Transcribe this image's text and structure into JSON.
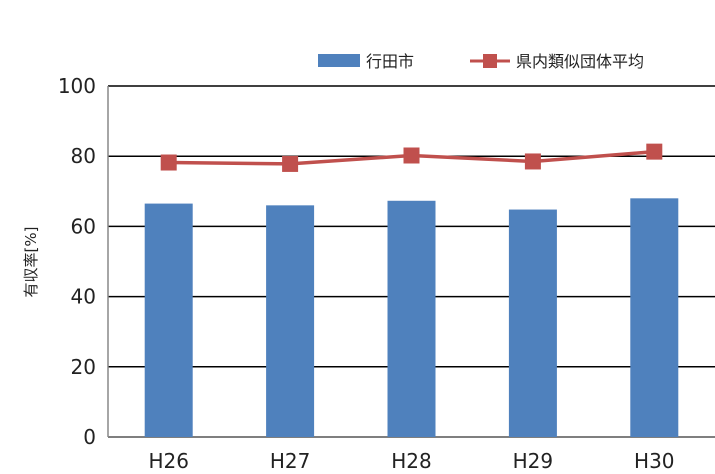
{
  "chart_data": {
    "type": "bar",
    "categories": [
      "H26",
      "H27",
      "H28",
      "H29",
      "H30"
    ],
    "series": [
      {
        "name": "行田市",
        "kind": "bar",
        "color": "#4f81bd",
        "values": [
          66.5,
          66.0,
          67.3,
          64.8,
          68.0
        ]
      },
      {
        "name": "県内類似団体平均",
        "kind": "line",
        "color": "#c0504d",
        "values": [
          78.2,
          77.8,
          80.2,
          78.5,
          81.3
        ]
      }
    ],
    "ylabel": "有収率[%]",
    "xlabel": "",
    "ylim": [
      0,
      100
    ],
    "yticks": [
      0,
      20,
      40,
      60,
      80,
      100
    ],
    "grid": true,
    "legend_position": "top-right"
  }
}
